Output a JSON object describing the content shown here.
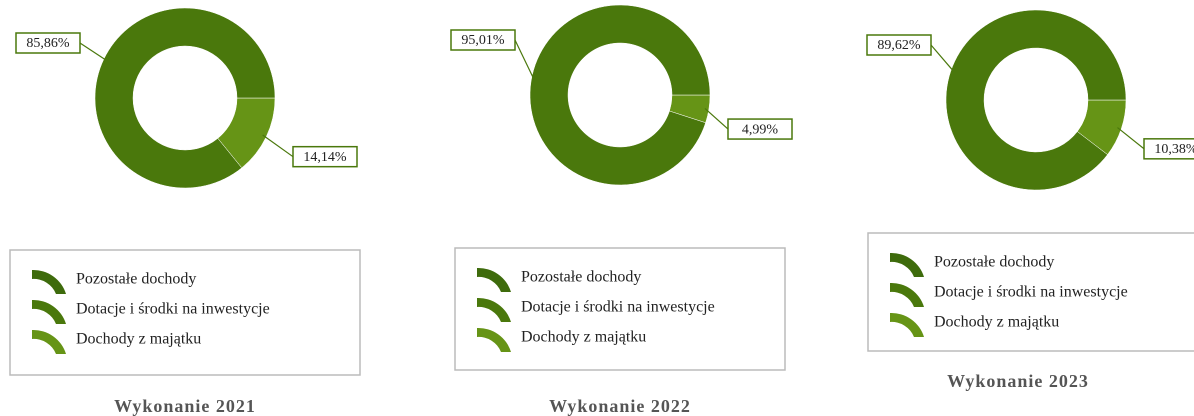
{
  "chart_data": [
    {
      "type": "pie",
      "title": "Wykonanie 2021",
      "categories": [
        "Pozostałe dochody",
        "Dotacje i środki na inwestycje",
        "Dochody z majątku"
      ],
      "values": [
        null,
        85.86,
        14.14
      ],
      "value_labels": [
        null,
        "85,86%",
        "14,14%"
      ],
      "colors": [
        "#3e6b0c",
        "#4a780c",
        "#669416"
      ]
    },
    {
      "type": "pie",
      "title": "Wykonanie 2022",
      "categories": [
        "Pozostałe dochody",
        "Dotacje i środki na inwestycje",
        "Dochody z majątku"
      ],
      "values": [
        null,
        95.01,
        4.99
      ],
      "value_labels": [
        null,
        "95,01%",
        "4,99%"
      ],
      "colors": [
        "#3e6b0c",
        "#4a780c",
        "#669416"
      ]
    },
    {
      "type": "pie",
      "title": "Wykonanie 2023",
      "categories": [
        "Pozostałe dochody",
        "Dotacje i środki na inwestycje",
        "Dochody z majątku"
      ],
      "values": [
        null,
        89.62,
        10.38
      ],
      "value_labels": [
        null,
        "89,62%",
        "10,38%"
      ],
      "colors": [
        "#3e6b0c",
        "#4a780c",
        "#669416"
      ]
    }
  ]
}
